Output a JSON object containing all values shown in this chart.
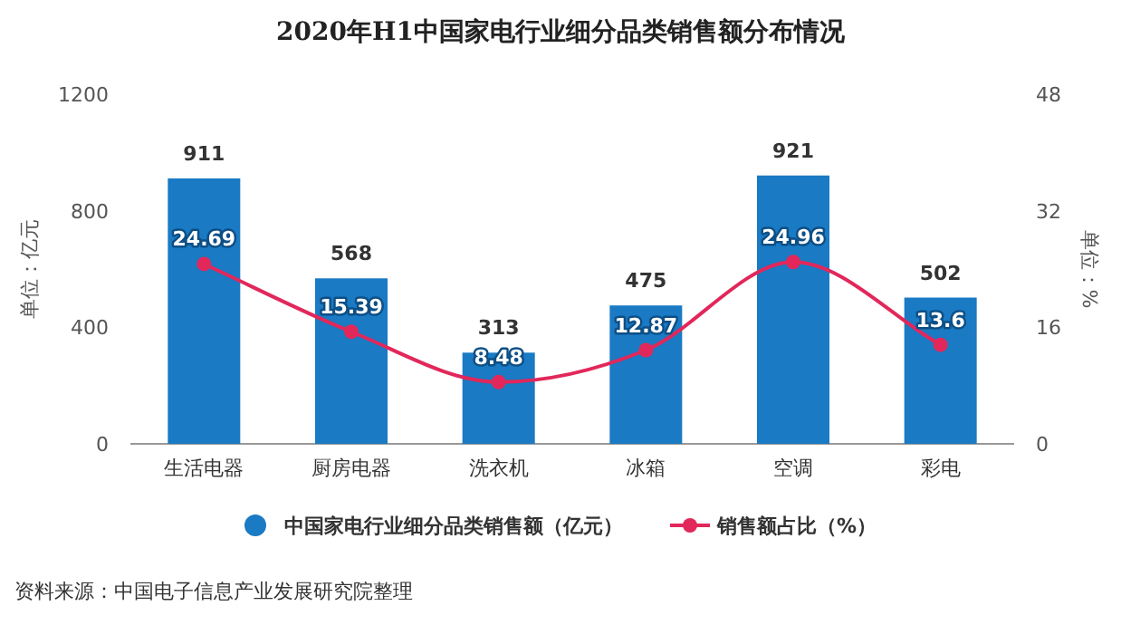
{
  "chart_data": {
    "type": "bar",
    "title": "2020年H1中国家电行业细分品类销售额分布情况",
    "ylabel": "单位：亿元",
    "y2label": "单位：%",
    "categories": [
      "生活电器",
      "厨房电器",
      "洗衣机",
      "冰箱",
      "空调",
      "彩电"
    ],
    "series": [
      {
        "name": "中国家电行业细分品类销售额（亿元）",
        "color": "#1a7ac4",
        "values": [
          911,
          568,
          313,
          475,
          921,
          502
        ]
      },
      {
        "name": "销售额占比（%）",
        "type": "line",
        "axis": "y2",
        "color": "#e2275a",
        "marker": "circle",
        "values": [
          24.69,
          15.39,
          8.48,
          12.87,
          24.96,
          13.6
        ]
      }
    ],
    "ylim": [
      0,
      1200
    ],
    "yticks": [
      0,
      400,
      800,
      1200
    ],
    "y2lim": [
      0,
      48
    ],
    "y2ticks": [
      0,
      16,
      32,
      48
    ],
    "data_labels": true,
    "legend": "bottom",
    "annotations": [
      "资料来源：中国电子信息产业发展研究院整理"
    ]
  }
}
